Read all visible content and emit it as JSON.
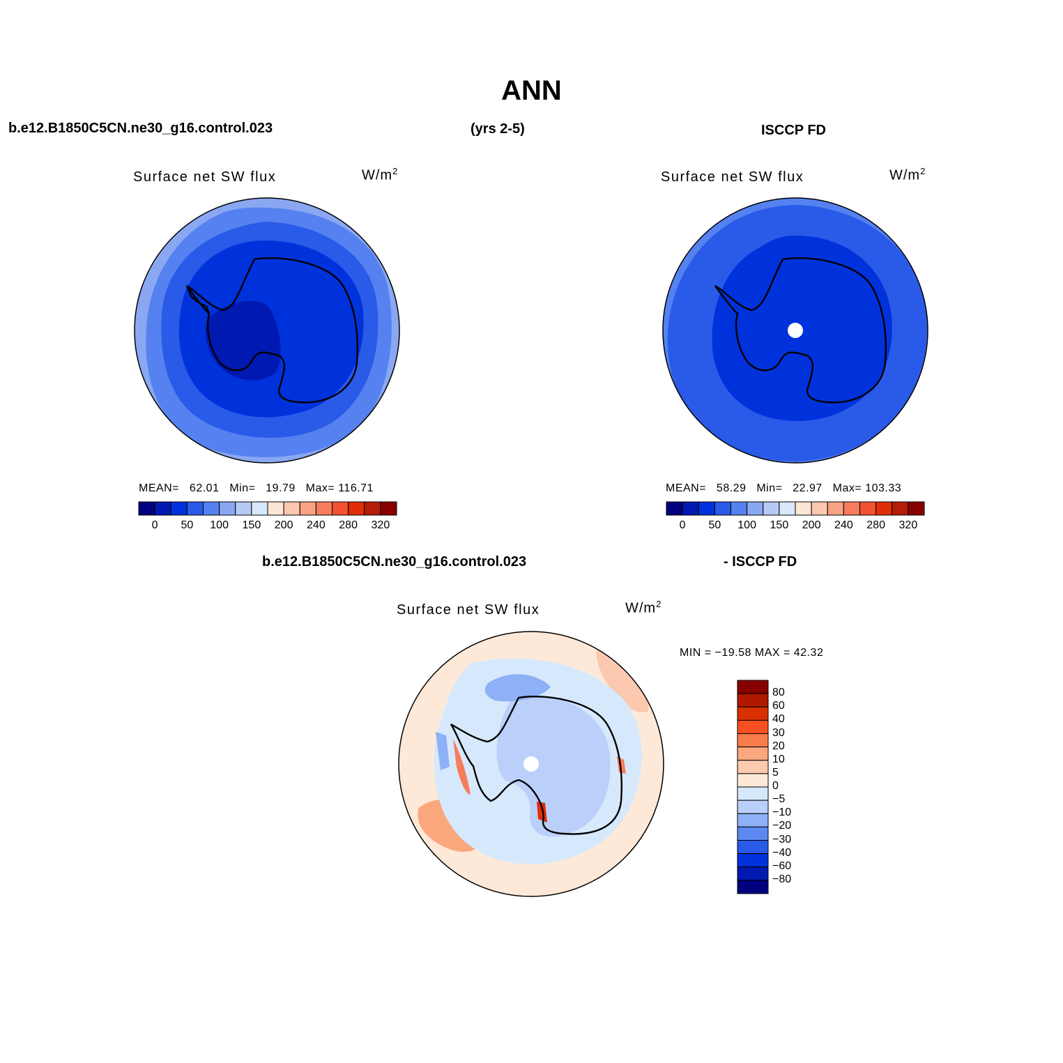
{
  "title": "ANN",
  "header": {
    "left_case": "b.e12.B1850C5CN.ne30_g16.control.023",
    "years": "(yrs 2-5)",
    "right_case": "ISCCP FD",
    "diff_case": "b.e12.B1850C5CN.ne30_g16.control.023",
    "diff_obs": "- ISCCP FD"
  },
  "panels": {
    "model": {
      "title": "Surface net SW flux",
      "units": "W/m",
      "units_sup": "2",
      "stats": {
        "mean_label": "MEAN=",
        "mean": "62.01",
        "min_label": "Min=",
        "min": "19.79",
        "max_label": "Max=",
        "max": "116.71"
      }
    },
    "obs": {
      "title": "Surface net SW flux",
      "units": "W/m",
      "units_sup": "2",
      "stats": {
        "mean_label": "MEAN=",
        "mean": "58.29",
        "min_label": "Min=",
        "min": "22.97",
        "max_label": "Max=",
        "max": "103.33"
      }
    },
    "diff": {
      "title": "Surface net SW flux",
      "units": "W/m",
      "units_sup": "2",
      "minmax": "MIN = −19.58  MAX =   42.32"
    }
  },
  "colorbar_abs": {
    "colors": [
      "#000080",
      "#0019b0",
      "#0032dc",
      "#2a5ae8",
      "#5582f0",
      "#8aa8f2",
      "#b7c9f5",
      "#d8e8fc",
      "#fde6d4",
      "#fcc8b0",
      "#f9a284",
      "#f77c5c",
      "#f25230",
      "#e02e08",
      "#b41e06",
      "#880000"
    ],
    "labels": [
      "0",
      "50",
      "100",
      "150",
      "200",
      "240",
      "280",
      "320"
    ]
  },
  "colorbar_diff": {
    "colors": [
      "#880000",
      "#b01800",
      "#d83000",
      "#f85020",
      "#fa7c4a",
      "#fba77e",
      "#fdcab0",
      "#fee9d8",
      "#d6e9fc",
      "#bad0fa",
      "#8eb0f6",
      "#5c88f2",
      "#2a5ae8",
      "#0032dc",
      "#0019b0",
      "#000080"
    ],
    "labels": [
      "80",
      "60",
      "40",
      "30",
      "20",
      "10",
      "5",
      "0",
      "−5",
      "−10",
      "−20",
      "−30",
      "−40",
      "−60",
      "−80"
    ]
  }
}
